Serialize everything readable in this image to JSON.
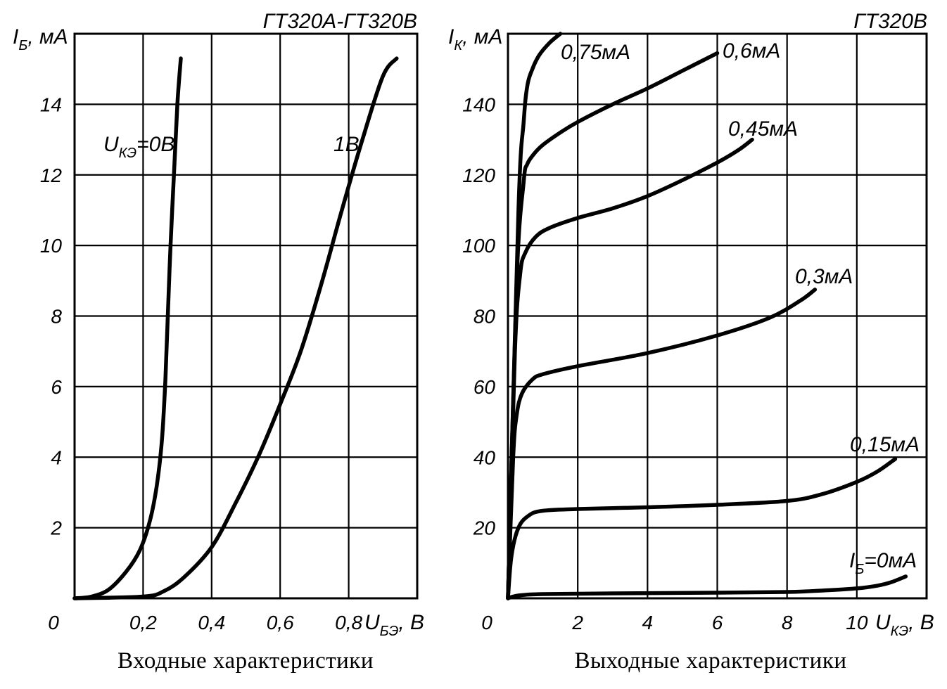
{
  "chart_data": [
    {
      "type": "line",
      "title": "ГТ320А-ГТ320В",
      "caption": "Входные характеристики",
      "ylabel": {
        "main": "I",
        "sub": "Б",
        "unit": ", мА"
      },
      "xlabel": {
        "main": "U",
        "sub": "БЭ",
        "unit": ", В"
      },
      "xlim": [
        0,
        1.0
      ],
      "ylim": [
        0,
        16
      ],
      "grid": true,
      "origin_label": "0",
      "x_ticks": [
        {
          "value": 0.2,
          "label": "0,2"
        },
        {
          "value": 0.4,
          "label": "0,4"
        },
        {
          "value": 0.6,
          "label": "0,6"
        },
        {
          "value": 0.8,
          "label": "0,8"
        }
      ],
      "y_ticks": [
        {
          "value": 2,
          "label": "2"
        },
        {
          "value": 4,
          "label": "4"
        },
        {
          "value": 6,
          "label": "6"
        },
        {
          "value": 8,
          "label": "8"
        },
        {
          "value": 10,
          "label": "10"
        },
        {
          "value": 12,
          "label": "12"
        },
        {
          "value": 14,
          "label": "14"
        }
      ],
      "series": [
        {
          "name": "=0В",
          "label": {
            "main": "U",
            "sub": "КЭ",
            "rest": "=0В"
          },
          "x": [
            0,
            0.05,
            0.1,
            0.15,
            0.19,
            0.22,
            0.24,
            0.255,
            0.265,
            0.272,
            0.28,
            0.29,
            0.3,
            0.31
          ],
          "y": [
            0,
            0.05,
            0.25,
            0.75,
            1.35,
            2.2,
            3.2,
            4.5,
            6.2,
            8,
            10,
            12,
            14,
            15.3
          ]
        },
        {
          "name": "1В",
          "label": {
            "main": "1В"
          },
          "x": [
            0,
            0.2,
            0.26,
            0.32,
            0.4,
            0.47,
            0.54,
            0.6,
            0.66,
            0.72,
            0.78,
            0.84,
            0.9,
            0.94
          ],
          "y": [
            0,
            0.05,
            0.2,
            0.6,
            1.45,
            2.7,
            4.1,
            5.5,
            7.0,
            8.9,
            11.0,
            13.0,
            14.8,
            15.3
          ]
        }
      ]
    },
    {
      "type": "line",
      "title": "ГТ320В",
      "caption": "Выходные характеристики",
      "ylabel": {
        "main": "I",
        "sub": "К",
        "unit": ", мА"
      },
      "xlabel": {
        "main": "U",
        "sub": "КЭ",
        "unit": ", В"
      },
      "xlim": [
        0,
        12
      ],
      "ylim": [
        0,
        160
      ],
      "grid": true,
      "origin_label": "0",
      "x_ticks": [
        {
          "value": 2,
          "label": "2"
        },
        {
          "value": 4,
          "label": "4"
        },
        {
          "value": 6,
          "label": "6"
        },
        {
          "value": 8,
          "label": "8"
        },
        {
          "value": 10,
          "label": "10"
        }
      ],
      "y_ticks": [
        {
          "value": 20,
          "label": "20"
        },
        {
          "value": 40,
          "label": "40"
        },
        {
          "value": 60,
          "label": "60"
        },
        {
          "value": 80,
          "label": "80"
        },
        {
          "value": 100,
          "label": "100"
        },
        {
          "value": 120,
          "label": "120"
        },
        {
          "value": 140,
          "label": "140"
        }
      ],
      "series": [
        {
          "name": "=0мА",
          "label": {
            "main": "I",
            "sub": "Б",
            "rest": "=0мА"
          },
          "x": [
            0,
            0.3,
            1,
            3,
            6,
            8,
            9,
            10,
            10.6,
            11.0,
            11.4
          ],
          "y": [
            0,
            0.8,
            1.2,
            1.4,
            1.6,
            1.8,
            2.2,
            2.8,
            3.6,
            4.6,
            6.2
          ]
        },
        {
          "name": "0,15мА",
          "label": {
            "main": "0,15мА"
          },
          "x": [
            0,
            0.1,
            0.3,
            0.6,
            1,
            2,
            4,
            6,
            8,
            9,
            10,
            10.6,
            11.1
          ],
          "y": [
            0,
            12,
            20,
            23.5,
            24.8,
            25.3,
            25.8,
            26.5,
            27.6,
            29.5,
            33,
            36,
            39.5
          ]
        },
        {
          "name": "0,3мА",
          "label": {
            "main": "0,3мА"
          },
          "x": [
            0,
            0.15,
            0.25,
            0.4,
            0.7,
            1,
            2,
            4,
            6,
            7.5,
            8.4,
            8.8
          ],
          "y": [
            0,
            40,
            52,
            58,
            62,
            63.5,
            65.8,
            69.5,
            74.5,
            79.5,
            84.5,
            87.5
          ]
        },
        {
          "name": "0,45мА",
          "label": {
            "main": "0,45мА"
          },
          "x": [
            0,
            0.2,
            0.35,
            0.5,
            0.8,
            1.2,
            2,
            3,
            4,
            5,
            6,
            6.6,
            7.0
          ],
          "y": [
            0,
            70,
            92,
            98,
            102.5,
            105,
            107.8,
            110.5,
            114,
            118.5,
            123.5,
            127,
            130
          ]
        },
        {
          "name": "0,6мА",
          "label": {
            "main": "0,6мА"
          },
          "x": [
            0,
            0.25,
            0.45,
            0.55,
            0.75,
            1,
            1.5,
            2,
            3,
            4,
            5,
            6
          ],
          "y": [
            0,
            90,
            118,
            123,
            126,
            128.5,
            132,
            135,
            140,
            144.5,
            149.5,
            154.5
          ]
        },
        {
          "name": "0,75мА",
          "label": {
            "main": "0,75мА"
          },
          "x": [
            0,
            0.3,
            0.45,
            0.55,
            0.7,
            0.9,
            1.2,
            1.5
          ],
          "y": [
            0,
            110,
            135,
            145,
            150,
            154,
            157.5,
            160
          ]
        }
      ]
    }
  ]
}
